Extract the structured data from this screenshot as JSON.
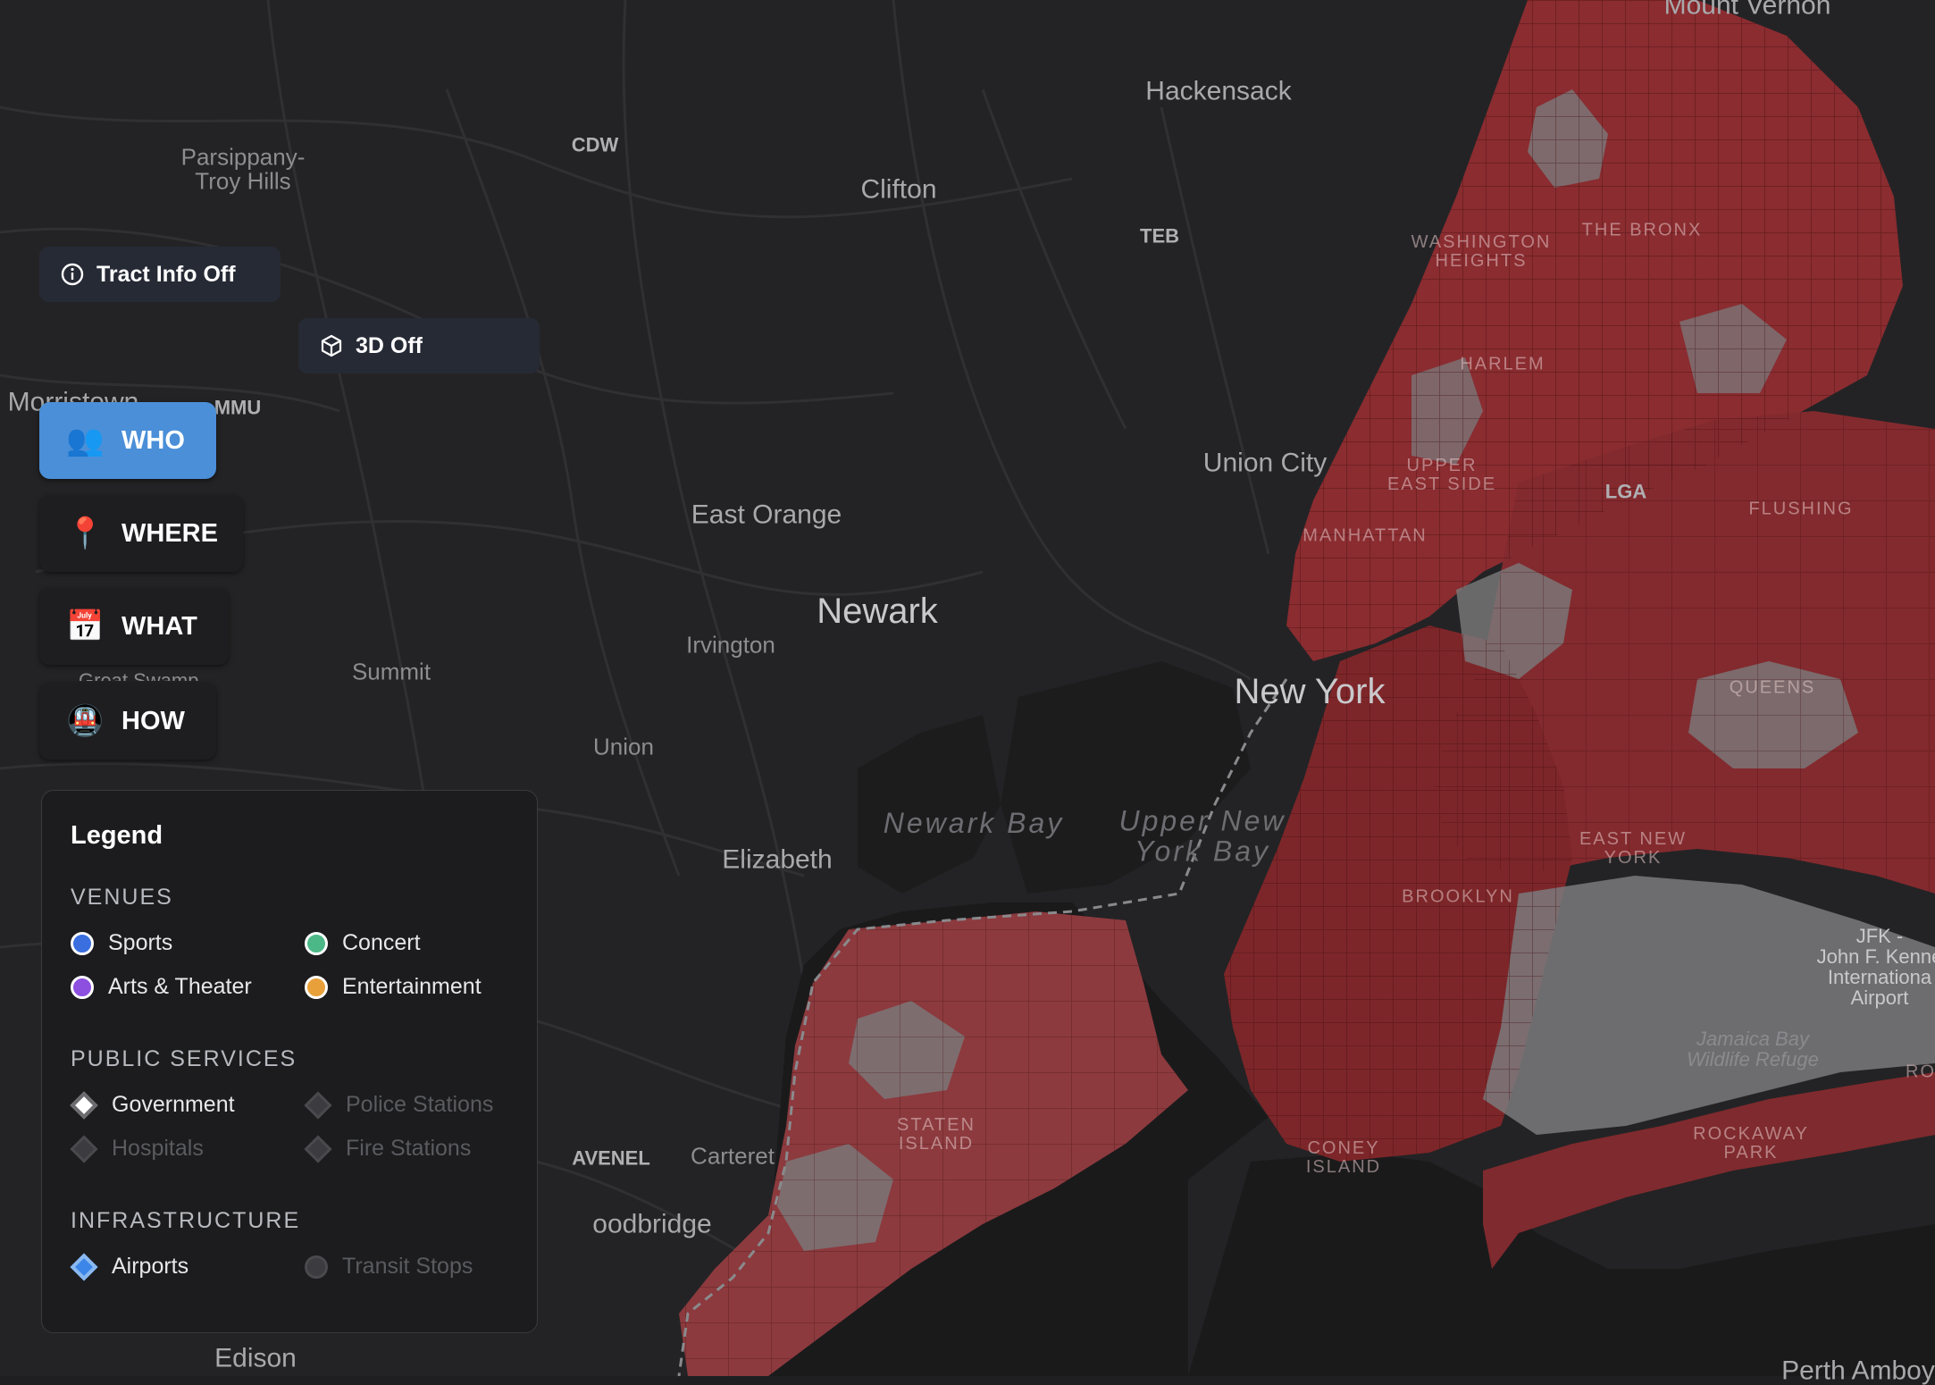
{
  "map": {
    "labels": [
      {
        "text": "Mount Vernon",
        "cls": "big"
      },
      {
        "text": "Hackensack",
        "cls": "big"
      },
      {
        "text": "Parsippany-\nTroy Hills",
        "cls": ""
      },
      {
        "text": "CDW",
        "cls": "code"
      },
      {
        "text": "Clifton",
        "cls": "big"
      },
      {
        "text": "TEB",
        "cls": "code"
      },
      {
        "text": "Morristown",
        "cls": "big"
      },
      {
        "text": "MMU",
        "cls": "code"
      },
      {
        "text": "Union City",
        "cls": "big"
      },
      {
        "text": "East Orange",
        "cls": "big"
      },
      {
        "text": "Newark",
        "cls": "city"
      },
      {
        "text": "Irvington",
        "cls": ""
      },
      {
        "text": "New York",
        "cls": "city"
      },
      {
        "text": "Summit",
        "cls": ""
      },
      {
        "text": "Union",
        "cls": ""
      },
      {
        "text": "Newark Bay",
        "cls": "water"
      },
      {
        "text": "Upper New\nYork Bay",
        "cls": "water"
      },
      {
        "text": "Elizabeth",
        "cls": "big"
      },
      {
        "text": "AVENEL",
        "cls": "code"
      },
      {
        "text": "Carteret",
        "cls": ""
      },
      {
        "text": "oodbridge",
        "cls": "big"
      },
      {
        "text": "Edison",
        "cls": "big"
      },
      {
        "text": "Perth Amboy",
        "cls": "big"
      },
      {
        "text": "WASHINGTON\nHEIGHTS",
        "cls": "hood"
      },
      {
        "text": "THE BRONX",
        "cls": "hood"
      },
      {
        "text": "HARLEM",
        "cls": "hood"
      },
      {
        "text": "UPPER\nEAST SIDE",
        "cls": "hood"
      },
      {
        "text": "MANHATTAN",
        "cls": "hood"
      },
      {
        "text": "LGA",
        "cls": "code"
      },
      {
        "text": "FLUSHING",
        "cls": "hood"
      },
      {
        "text": "QUEENS",
        "cls": "hood"
      },
      {
        "text": "EAST NEW\nYORK",
        "cls": "hood"
      },
      {
        "text": "BROOKLYN",
        "cls": "hood"
      },
      {
        "text": "STATEN\nISLAND",
        "cls": "hood"
      },
      {
        "text": "CONEY\nISLAND",
        "cls": "hood"
      },
      {
        "text": "ROCKAWAY\nPARK",
        "cls": "hood"
      },
      {
        "text": "JFK -\nJohn F. Kenne\nInternationa\nAirport",
        "cls": "air"
      },
      {
        "text": "Jamaica Bay\nWildlife Refuge",
        "cls": "park"
      },
      {
        "text": "RO",
        "cls": "hood"
      }
    ]
  },
  "controls": {
    "tract_info": "Tract Info Off",
    "three_d": "3D Off"
  },
  "nav": {
    "who": "WHO",
    "where": "WHERE",
    "what": "WHAT",
    "how": "HOW",
    "who_icon": "👥",
    "where_icon": "📍",
    "what_icon": "📅",
    "how_icon": "🚇",
    "partial_label": "Great Swamp"
  },
  "legend": {
    "title": "Legend",
    "venues": {
      "title": "VENUES",
      "sports": "Sports",
      "concert": "Concert",
      "arts": "Arts & Theater",
      "entertainment": "Entertainment",
      "colors": {
        "sports": "#3b6fe0",
        "concert": "#4cb888",
        "arts": "#8d4fe0",
        "entertainment": "#e8a13a"
      }
    },
    "public_services": {
      "title": "PUBLIC SERVICES",
      "government": "Government",
      "police": "Police Stations",
      "hospitals": "Hospitals",
      "fire": "Fire Stations"
    },
    "infrastructure": {
      "title": "INFRASTRUCTURE",
      "airports": "Airports",
      "transit": "Transit Stops"
    }
  }
}
